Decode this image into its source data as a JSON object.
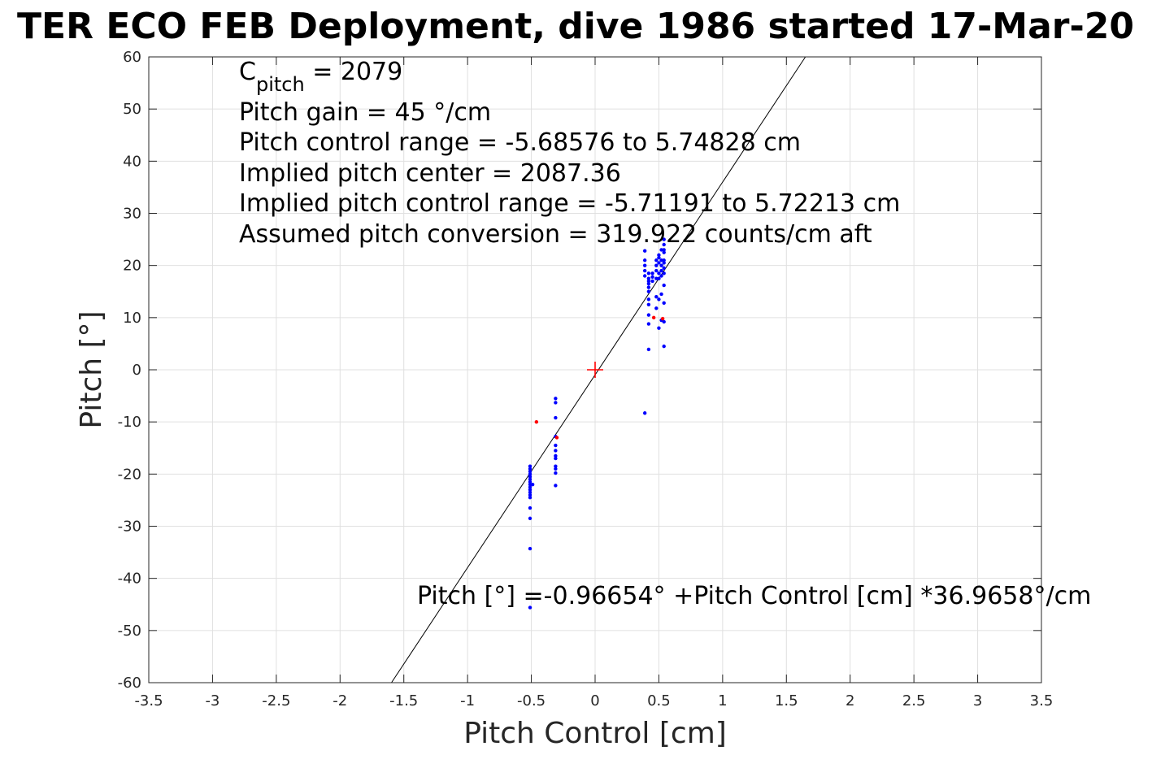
{
  "chart_data": {
    "type": "scatter",
    "title": "TER ECO FEB Deployment, dive 1986 started 17-Mar-20",
    "xlabel": "Pitch Control [cm]",
    "ylabel": "Pitch [°]",
    "xlim": [
      -3.5,
      3.5
    ],
    "ylim": [
      -60,
      60
    ],
    "grid": true,
    "xticks": [
      "-3.5",
      "-3",
      "-2.5",
      "-2",
      "-1.5",
      "-1",
      "-0.5",
      "0",
      "0.5",
      "1",
      "1.5",
      "2",
      "2.5",
      "3",
      "3.5"
    ],
    "yticks": [
      "60",
      "50",
      "40",
      "30",
      "20",
      "10",
      "0",
      "-10",
      "-20",
      "-30",
      "-40",
      "-50",
      "-60"
    ],
    "annotations": {
      "c_pitch_prefix": "C",
      "c_pitch_subscript": "pitch",
      "c_pitch_value": " = 2079",
      "pitch_gain": "Pitch gain = 45 °/cm",
      "control_range": "Pitch control range = -5.68576 to 5.74828 cm",
      "implied_center": "Implied pitch center = 2087.36",
      "implied_range": "Implied pitch control range = -5.71191 to 5.72213 cm",
      "conversion": "Assumed pitch conversion = 319.922 counts/cm aft",
      "fit_equation": "Pitch [°] =-0.96654° +Pitch Control [cm] *36.9658°/cm"
    },
    "fit_line": {
      "intercept": -0.96654,
      "slope": 36.9658
    },
    "center_marker": {
      "x": 0,
      "y": 0,
      "color": "#ff0000"
    },
    "series": [
      {
        "color": "#0000ff",
        "points": [
          [
            -0.51,
            -18.5
          ],
          [
            -0.51,
            -19.0
          ],
          [
            -0.51,
            -19.5
          ],
          [
            -0.51,
            -20.0
          ],
          [
            -0.51,
            -20.5
          ],
          [
            -0.51,
            -21.0
          ],
          [
            -0.51,
            -21.5
          ],
          [
            -0.51,
            -22.0
          ],
          [
            -0.51,
            -22.5
          ],
          [
            -0.51,
            -23.0
          ],
          [
            -0.51,
            -23.5
          ],
          [
            -0.51,
            -24.0
          ],
          [
            -0.51,
            -24.5
          ],
          [
            -0.51,
            -26.5
          ],
          [
            -0.51,
            -28.5
          ],
          [
            -0.51,
            -34.3
          ],
          [
            -0.51,
            -45.6
          ],
          [
            -0.49,
            -22.0
          ],
          [
            -0.31,
            -5.5
          ],
          [
            -0.31,
            -6.3
          ],
          [
            -0.31,
            -9.2
          ],
          [
            -0.31,
            -12.8
          ],
          [
            -0.31,
            -14.5
          ],
          [
            -0.31,
            -15.5
          ],
          [
            -0.31,
            -16.5
          ],
          [
            -0.31,
            -17.0
          ],
          [
            -0.31,
            -18.5
          ],
          [
            -0.31,
            -19.0
          ],
          [
            -0.31,
            -19.8
          ],
          [
            -0.31,
            -22.2
          ],
          [
            0.39,
            -8.3
          ],
          [
            0.39,
            18.0
          ],
          [
            0.39,
            19.0
          ],
          [
            0.39,
            20.0
          ],
          [
            0.39,
            21.0
          ],
          [
            0.39,
            22.8
          ],
          [
            0.42,
            3.9
          ],
          [
            0.42,
            8.8
          ],
          [
            0.42,
            10.5
          ],
          [
            0.42,
            12.5
          ],
          [
            0.42,
            13.5
          ],
          [
            0.42,
            15.0
          ],
          [
            0.42,
            15.8
          ],
          [
            0.42,
            16.5
          ],
          [
            0.42,
            17.0
          ],
          [
            0.42,
            17.5
          ],
          [
            0.42,
            18.5
          ],
          [
            0.45,
            17.0
          ],
          [
            0.45,
            17.8
          ],
          [
            0.45,
            18.5
          ],
          [
            0.48,
            11.8
          ],
          [
            0.48,
            14.0
          ],
          [
            0.48,
            17.5
          ],
          [
            0.48,
            19.0
          ],
          [
            0.48,
            20.0
          ],
          [
            0.48,
            21.0
          ],
          [
            0.5,
            8.0
          ],
          [
            0.5,
            13.5
          ],
          [
            0.5,
            17.5
          ],
          [
            0.5,
            18.5
          ],
          [
            0.5,
            20.5
          ],
          [
            0.5,
            21.5
          ],
          [
            0.5,
            22.0
          ],
          [
            0.52,
            9.5
          ],
          [
            0.52,
            14.5
          ],
          [
            0.52,
            18.0
          ],
          [
            0.52,
            19.0
          ],
          [
            0.52,
            20.0
          ],
          [
            0.52,
            21.0
          ],
          [
            0.52,
            23.0
          ],
          [
            0.54,
            4.5
          ],
          [
            0.54,
            9.2
          ],
          [
            0.54,
            12.8
          ],
          [
            0.54,
            16.2
          ],
          [
            0.54,
            18.5
          ],
          [
            0.54,
            19.5
          ],
          [
            0.54,
            20.5
          ],
          [
            0.54,
            21.0
          ],
          [
            0.54,
            22.5
          ],
          [
            0.54,
            23.0
          ],
          [
            0.54,
            24.0
          ],
          [
            0.54,
            25.0
          ]
        ]
      },
      {
        "color": "#ff0000",
        "points": [
          [
            -0.46,
            -10.0
          ],
          [
            -0.3,
            -13.0
          ],
          [
            0.46,
            10.0
          ],
          [
            0.53,
            9.8
          ]
        ]
      }
    ]
  }
}
